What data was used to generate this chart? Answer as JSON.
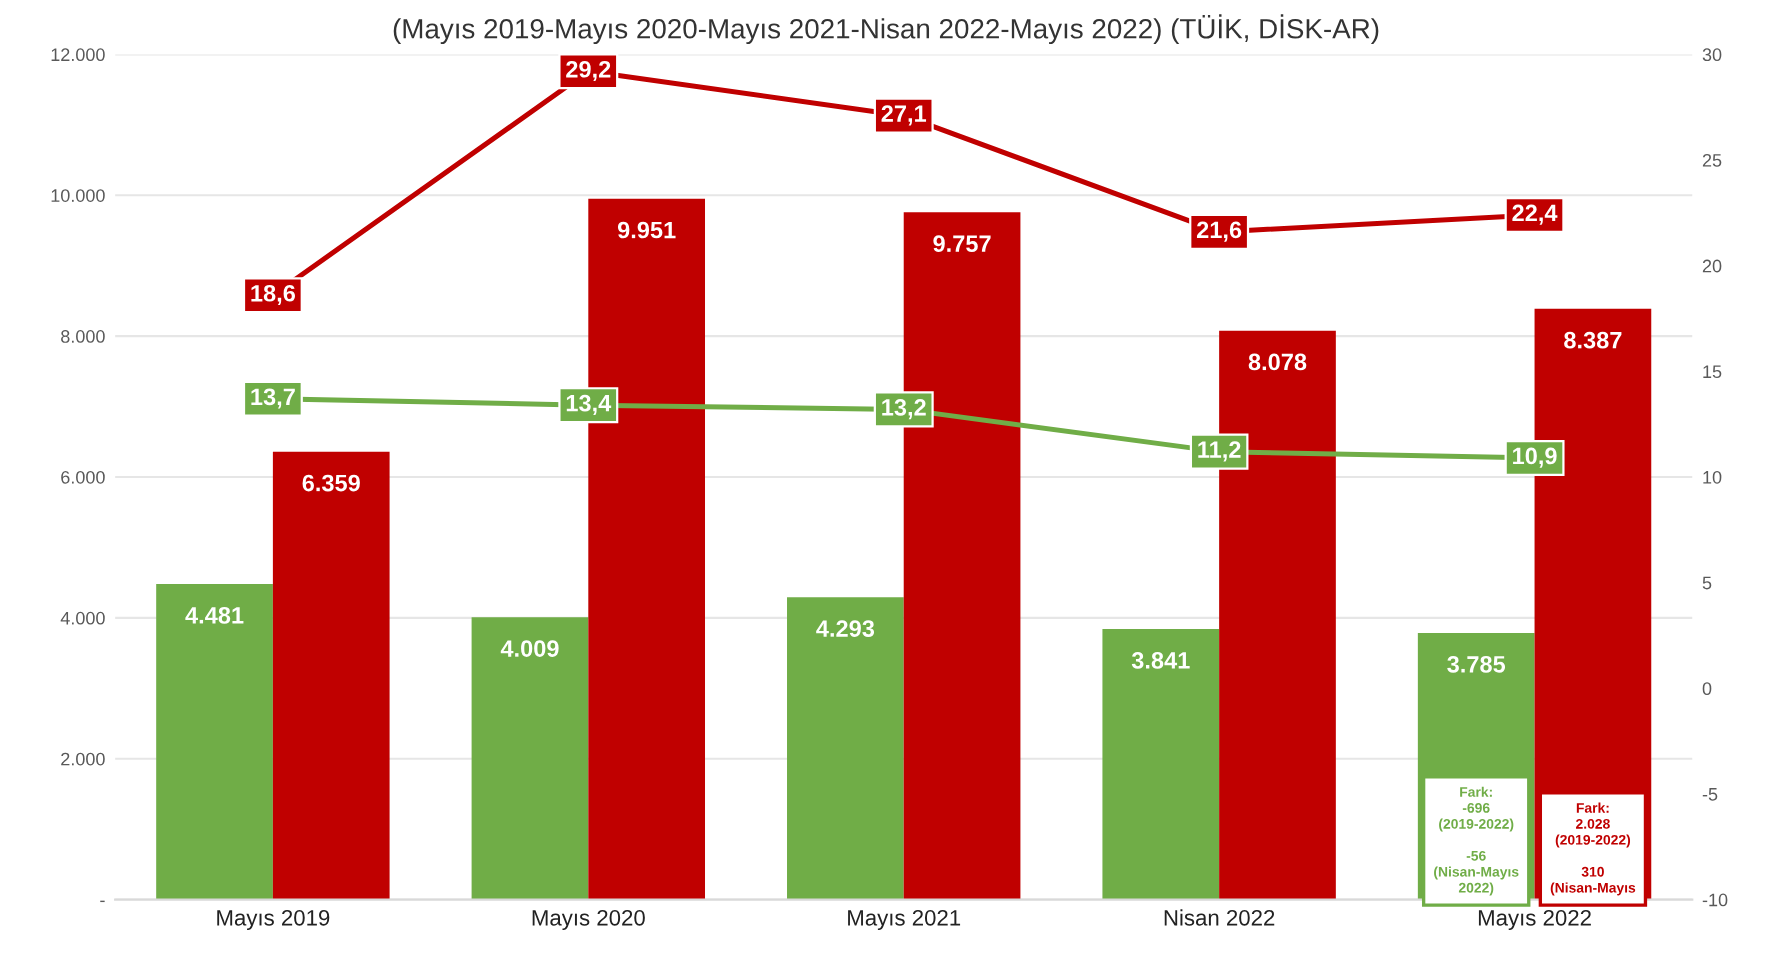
{
  "chart_data": {
    "type": "bar",
    "title": "(Mayıs 2019-Mayıs 2020-Mayıs 2021-Nisan 2022-Mayıs 2022) (TÜİK, DİSK-AR)",
    "categories": [
      "Mayıs 2019",
      "Mayıs 2020",
      "Mayıs 2021",
      "Nisan 2022",
      "Mayıs 2022"
    ],
    "series": [
      {
        "color": "#70ad47",
        "values": [
          4481,
          4009,
          4293,
          3841,
          3785
        ],
        "value_labels": [
          "4.481",
          "4.009",
          "4.293",
          "3.841",
          "3.785"
        ]
      },
      {
        "color": "#c00000",
        "values": [
          6359,
          9951,
          9757,
          8078,
          8387
        ],
        "value_labels": [
          "6.359",
          "9.951",
          "9.757",
          "8.078",
          "8.387"
        ]
      },
      {
        "type": "line",
        "axis": "y2",
        "color": "#c00000",
        "values": [
          18.6,
          29.2,
          27.1,
          21.6,
          22.4
        ],
        "value_labels": [
          "18,6",
          "29,2",
          "27,1",
          "21,6",
          "22,4"
        ]
      },
      {
        "type": "line",
        "axis": "y2",
        "color": "#70ad47",
        "values": [
          13.7,
          13.4,
          13.2,
          11.2,
          10.9
        ],
        "value_labels": [
          "13,7",
          "13,4",
          "13,2",
          "11,2",
          "10,9"
        ]
      }
    ],
    "ylim": [
      0,
      12000
    ],
    "yticks": [
      {
        "value": 0,
        "label": "-"
      },
      {
        "value": 2000,
        "label": "2.000"
      },
      {
        "value": 4000,
        "label": "4.000"
      },
      {
        "value": 6000,
        "label": "6.000"
      },
      {
        "value": 8000,
        "label": "8.000"
      },
      {
        "value": 10000,
        "label": "10.000"
      },
      {
        "value": 12000,
        "label": "12.000"
      }
    ],
    "y2lim": [
      -10,
      30
    ],
    "y2ticks": [
      -10,
      -5,
      0,
      5,
      10,
      15,
      20,
      25,
      30
    ],
    "grid": "y",
    "marker": "square",
    "annotations": [
      "Fark:\n-696\n(2019-2022)\n\n-56\n(Nisan-Mayıs\n2022)",
      "Fark:\n2.028\n(2019-2022)\n\n310\n(Nisan-Mayıs"
    ]
  }
}
